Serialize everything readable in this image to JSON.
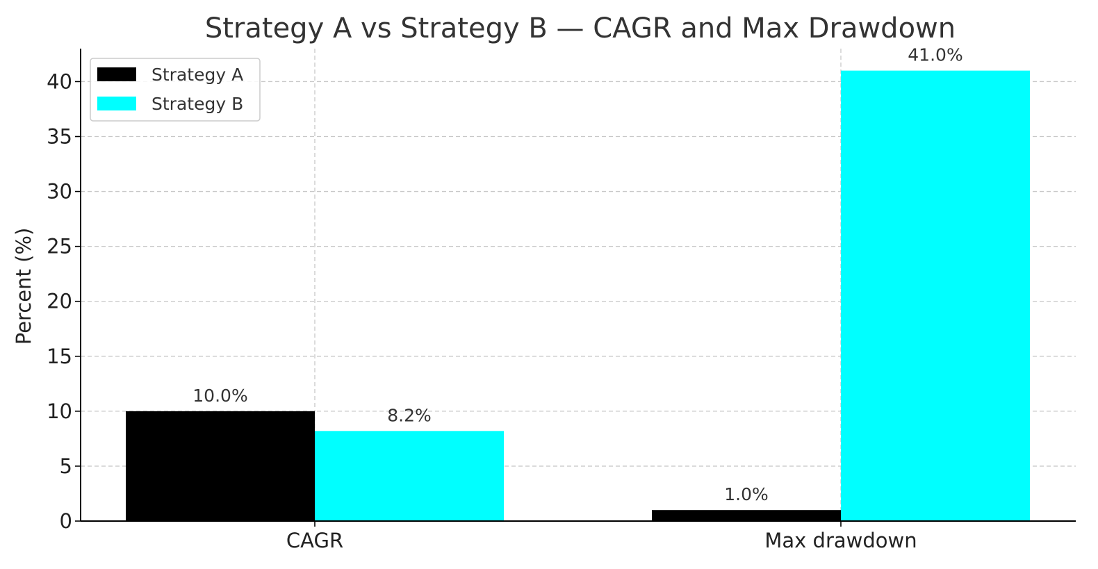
{
  "chart_data": {
    "type": "bar",
    "title": "Strategy A vs Strategy B — CAGR and Max Drawdown",
    "xlabel": "",
    "ylabel": "Percent (%)",
    "categories": [
      "CAGR",
      "Max drawdown"
    ],
    "series": [
      {
        "name": "Strategy A",
        "color": "#000000",
        "values": [
          10.0,
          1.0
        ],
        "labels": [
          "10.0%",
          "1.0%"
        ]
      },
      {
        "name": "Strategy B",
        "color": "#00ffff",
        "values": [
          8.2,
          41.0
        ],
        "labels": [
          "8.2%",
          "41.0%"
        ]
      }
    ],
    "ylim": [
      0,
      43
    ],
    "yticks": [
      0,
      5,
      10,
      15,
      20,
      25,
      30,
      35,
      40
    ],
    "grid": true,
    "legend_position": "top-left"
  }
}
